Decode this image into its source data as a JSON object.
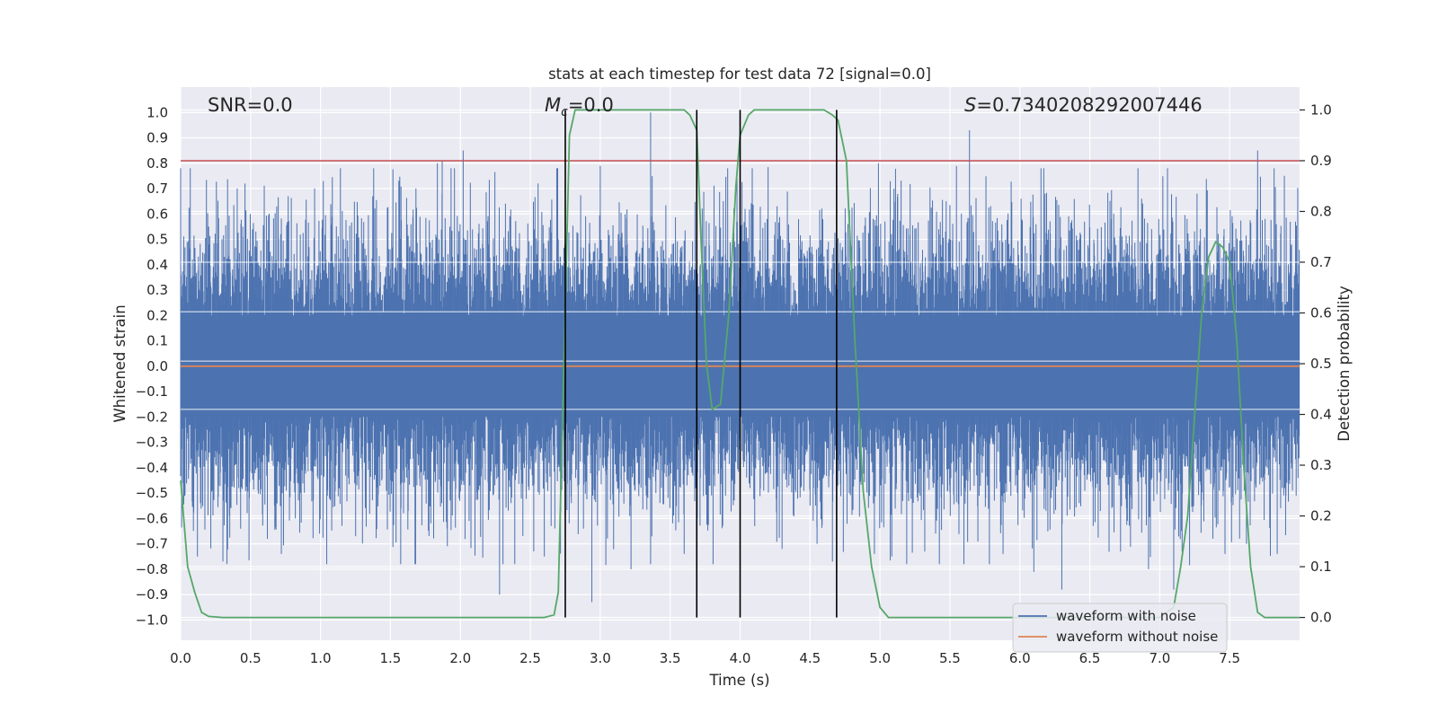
{
  "chart_data": {
    "type": "line",
    "title": "stats at each timestep for test data 72 [signal=0.0]",
    "xlabel": "Time (s)",
    "ylabel_left": "Whitened strain",
    "ylabel_right": "Detection probability",
    "xlim": [
      0.0,
      8.0
    ],
    "ylim_left": [
      -1.08,
      1.1
    ],
    "ylim_right": [
      -0.045,
      1.045
    ],
    "x_ticks": [
      0.0,
      0.5,
      1.0,
      1.5,
      2.0,
      2.5,
      3.0,
      3.5,
      4.0,
      4.5,
      5.0,
      5.5,
      6.0,
      6.5,
      7.0,
      7.5
    ],
    "x_tick_labels": [
      "0.0",
      "0.5",
      "1.0",
      "1.5",
      "2.0",
      "2.5",
      "3.0",
      "3.5",
      "4.0",
      "4.5",
      "5.0",
      "5.5",
      "6.0",
      "6.5",
      "7.0",
      "7.5"
    ],
    "y_ticks_left": [
      -1.0,
      -0.9,
      -0.8,
      -0.7,
      -0.6,
      -0.5,
      -0.4,
      -0.3,
      -0.2,
      -0.1,
      0.0,
      0.1,
      0.2,
      0.3,
      0.4,
      0.5,
      0.6,
      0.7,
      0.8,
      0.9,
      1.0
    ],
    "y_tick_labels_left": [
      "−1.0",
      "−0.9",
      "−0.8",
      "−0.7",
      "−0.6",
      "−0.5",
      "−0.4",
      "−0.3",
      "−0.2",
      "−0.1",
      "0.0",
      "0.1",
      "0.2",
      "0.3",
      "0.4",
      "0.5",
      "0.6",
      "0.7",
      "0.8",
      "0.9",
      "1.0"
    ],
    "y_ticks_right": [
      0.0,
      0.1,
      0.2,
      0.3,
      0.4,
      0.5,
      0.6,
      0.7,
      0.8,
      0.9,
      1.0
    ],
    "y_tick_labels_right": [
      "0.0",
      "0.1",
      "0.2",
      "0.3",
      "0.4",
      "0.5",
      "0.6",
      "0.7",
      "0.8",
      "0.9",
      "1.0"
    ],
    "annotations": {
      "snr": "SNR=0.0",
      "mc_symbol": "M",
      "mc_subscript": "c",
      "mc_value": "=0.0",
      "s_symbol": "S",
      "s_value": "=0.7340208292007446"
    },
    "threshold": {
      "axis": "right",
      "value": 0.9,
      "color": "#c44e52"
    },
    "event_lines": [
      {
        "x": 2.75,
        "y_top": 1.0
      },
      {
        "x": 3.69,
        "y_top": 1.0
      },
      {
        "x": 4.0,
        "y_top": 1.0
      },
      {
        "x": 4.69,
        "y_top": 1.0
      }
    ],
    "noise_envelope": {
      "typical_abs": 0.38,
      "spikes": [
        {
          "x": 0.12,
          "v": -0.75
        },
        {
          "x": 0.2,
          "v": 0.55
        },
        {
          "x": 0.46,
          "v": 0.72
        },
        {
          "x": 0.62,
          "v": -0.68
        },
        {
          "x": 0.72,
          "v": -0.74
        },
        {
          "x": 0.82,
          "v": -0.6
        },
        {
          "x": 1.02,
          "v": 0.73
        },
        {
          "x": 1.38,
          "v": 0.78
        },
        {
          "x": 1.68,
          "v": -0.78
        },
        {
          "x": 1.87,
          "v": 0.81
        },
        {
          "x": 2.02,
          "v": 0.85
        },
        {
          "x": 2.28,
          "v": -0.9
        },
        {
          "x": 2.6,
          "v": -0.75
        },
        {
          "x": 2.7,
          "v": 0.5
        },
        {
          "x": 2.94,
          "v": -0.93
        },
        {
          "x": 3.0,
          "v": 0.79
        },
        {
          "x": 3.22,
          "v": -0.8
        },
        {
          "x": 3.36,
          "v": 1.0
        },
        {
          "x": 3.6,
          "v": -0.74
        },
        {
          "x": 4.3,
          "v": -0.72
        },
        {
          "x": 4.55,
          "v": -0.7
        },
        {
          "x": 4.66,
          "v": -0.77
        },
        {
          "x": 4.96,
          "v": -0.74
        },
        {
          "x": 5.1,
          "v": 0.7
        },
        {
          "x": 5.32,
          "v": -0.73
        },
        {
          "x": 5.64,
          "v": 0.93
        },
        {
          "x": 5.88,
          "v": -0.74
        },
        {
          "x": 6.1,
          "v": -0.81
        },
        {
          "x": 6.18,
          "v": 0.68
        },
        {
          "x": 6.3,
          "v": -0.88
        },
        {
          "x": 6.72,
          "v": -0.73
        },
        {
          "x": 6.92,
          "v": -0.8
        },
        {
          "x": 7.1,
          "v": -0.88
        },
        {
          "x": 7.62,
          "v": -0.7
        },
        {
          "x": 7.7,
          "v": 0.85
        },
        {
          "x": 7.84,
          "v": -0.74
        }
      ]
    },
    "series": [
      {
        "name": "waveform with noise",
        "color": "#4c72b0",
        "kind": "noise",
        "axis": "left"
      },
      {
        "name": "waveform without noise",
        "color": "#dd8452",
        "kind": "line",
        "axis": "left",
        "x": [
          0.0,
          8.0
        ],
        "y": [
          0.0,
          0.0
        ]
      },
      {
        "name": "detection probability",
        "color": "#55a868",
        "kind": "line",
        "axis": "right",
        "in_legend": false,
        "x": [
          0.0,
          0.05,
          0.1,
          0.15,
          0.2,
          0.3,
          0.5,
          1.0,
          1.5,
          2.0,
          2.5,
          2.6,
          2.67,
          2.7,
          2.74,
          2.78,
          2.82,
          2.9,
          3.0,
          3.2,
          3.4,
          3.6,
          3.64,
          3.69,
          3.72,
          3.76,
          3.8,
          3.86,
          3.92,
          3.97,
          4.0,
          4.06,
          4.1,
          4.2,
          4.4,
          4.6,
          4.66,
          4.7,
          4.76,
          4.82,
          4.88,
          4.94,
          5.0,
          5.06,
          5.2,
          5.5,
          6.0,
          6.5,
          7.0,
          7.1,
          7.15,
          7.2,
          7.25,
          7.3,
          7.35,
          7.4,
          7.45,
          7.5,
          7.55,
          7.6,
          7.65,
          7.7,
          7.75,
          7.8,
          7.9,
          8.0
        ],
        "y": [
          0.27,
          0.1,
          0.05,
          0.01,
          0.002,
          0.0,
          0.0,
          0.0,
          0.0,
          0.0,
          0.0,
          0.0,
          0.005,
          0.05,
          0.5,
          0.95,
          1.0,
          1.0,
          1.0,
          1.0,
          1.0,
          1.0,
          0.99,
          0.96,
          0.75,
          0.5,
          0.41,
          0.42,
          0.6,
          0.85,
          0.95,
          0.99,
          1.0,
          1.0,
          1.0,
          1.0,
          0.99,
          0.98,
          0.9,
          0.55,
          0.25,
          0.1,
          0.02,
          0.0,
          0.0,
          0.0,
          0.0,
          0.0,
          0.0,
          0.02,
          0.1,
          0.2,
          0.4,
          0.6,
          0.71,
          0.74,
          0.73,
          0.7,
          0.55,
          0.3,
          0.1,
          0.01,
          0.0,
          0.0,
          0.0,
          0.0
        ]
      }
    ],
    "legend": {
      "placement": "lower-right",
      "entries": [
        "waveform with noise",
        "waveform without noise"
      ]
    },
    "grid": true
  }
}
